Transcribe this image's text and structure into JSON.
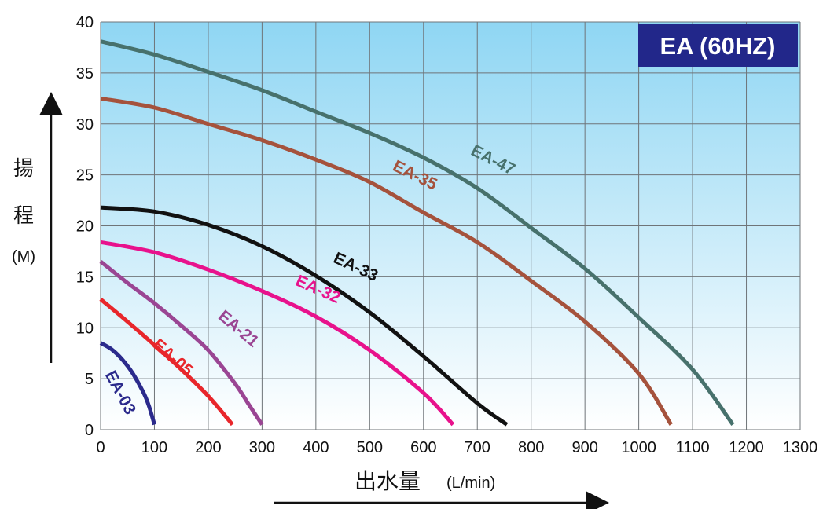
{
  "chart_data": {
    "type": "line",
    "title": "EA (60HZ)",
    "title_badge_color": "#22278a",
    "xlabel_main": "出水量",
    "xlabel_unit": "(L/min)",
    "ylabel_chars": [
      "揚",
      "程"
    ],
    "ylabel_unit": "(M)",
    "xlim": [
      0,
      1300
    ],
    "ylim": [
      0,
      40
    ],
    "x_ticks": [
      "0",
      "100",
      "200",
      "300",
      "400",
      "500",
      "600",
      "700",
      "800",
      "900",
      "1000",
      "1100",
      "1200",
      "1300"
    ],
    "y_ticks": [
      "0",
      "5",
      "10",
      "15",
      "20",
      "25",
      "30",
      "35",
      "40"
    ],
    "grid": true,
    "background": "gradient light-blue (top) to white (bottom)",
    "series": [
      {
        "name": "EA-03",
        "color": "#2b2a8c",
        "points": [
          [
            0,
            8.5
          ],
          [
            20,
            7.9
          ],
          [
            40,
            6.9
          ],
          [
            60,
            5.5
          ],
          [
            80,
            3.6
          ],
          [
            90,
            2.3
          ],
          [
            100,
            0.5
          ]
        ]
      },
      {
        "name": "EA-05",
        "color": "#e8262b",
        "points": [
          [
            0,
            12.8
          ],
          [
            50,
            10.6
          ],
          [
            100,
            8.3
          ],
          [
            150,
            5.9
          ],
          [
            200,
            3.3
          ],
          [
            245,
            0.5
          ]
        ]
      },
      {
        "name": "EA-21",
        "color": "#9a4593",
        "points": [
          [
            0,
            16.5
          ],
          [
            50,
            14.4
          ],
          [
            100,
            12.4
          ],
          [
            150,
            10.2
          ],
          [
            200,
            7.8
          ],
          [
            250,
            4.5
          ],
          [
            275,
            2.5
          ],
          [
            300,
            0.5
          ]
        ]
      },
      {
        "name": "EA-32",
        "color": "#e8128c",
        "points": [
          [
            0,
            18.4
          ],
          [
            100,
            17.4
          ],
          [
            200,
            15.7
          ],
          [
            300,
            13.6
          ],
          [
            400,
            11.1
          ],
          [
            500,
            7.8
          ],
          [
            600,
            3.6
          ],
          [
            655,
            0.5
          ]
        ]
      },
      {
        "name": "EA-33",
        "color": "#111111",
        "points": [
          [
            0,
            21.8
          ],
          [
            100,
            21.4
          ],
          [
            200,
            20.1
          ],
          [
            300,
            18.0
          ],
          [
            400,
            15.1
          ],
          [
            500,
            11.5
          ],
          [
            600,
            7.2
          ],
          [
            700,
            2.6
          ],
          [
            755,
            0.5
          ]
        ]
      },
      {
        "name": "EA-35",
        "color": "#a5523c",
        "points": [
          [
            0,
            32.5
          ],
          [
            100,
            31.6
          ],
          [
            200,
            30.0
          ],
          [
            300,
            28.4
          ],
          [
            400,
            26.5
          ],
          [
            500,
            24.3
          ],
          [
            600,
            21.3
          ],
          [
            700,
            18.4
          ],
          [
            800,
            14.6
          ],
          [
            900,
            10.6
          ],
          [
            1000,
            5.5
          ],
          [
            1060,
            0.5
          ]
        ]
      },
      {
        "name": "EA-47",
        "color": "#47716c",
        "points": [
          [
            0,
            38.1
          ],
          [
            100,
            36.8
          ],
          [
            200,
            35.1
          ],
          [
            300,
            33.3
          ],
          [
            400,
            31.2
          ],
          [
            500,
            29.1
          ],
          [
            600,
            26.7
          ],
          [
            700,
            23.7
          ],
          [
            800,
            19.8
          ],
          [
            900,
            15.8
          ],
          [
            1000,
            11.0
          ],
          [
            1100,
            5.9
          ],
          [
            1175,
            0.5
          ]
        ]
      }
    ]
  },
  "curve_labels": [
    {
      "text": "EA-03",
      "color": "#2b2a8c",
      "x": 28,
      "y": 3.4,
      "rotate": 62
    },
    {
      "text": "EA-05",
      "color": "#e8262b",
      "x": 128,
      "y": 6.7,
      "rotate": 41
    },
    {
      "text": "EA-21",
      "color": "#9a4593",
      "x": 250,
      "y": 9.5,
      "rotate": 40
    },
    {
      "text": "EA-32",
      "color": "#e8128c",
      "x": 400,
      "y": 13.3,
      "rotate": 24
    },
    {
      "text": "EA-33",
      "color": "#111111",
      "x": 470,
      "y": 15.5,
      "rotate": 25
    },
    {
      "text": "EA-35",
      "color": "#a5523c",
      "x": 580,
      "y": 24.5,
      "rotate": 26
    },
    {
      "text": "EA-47",
      "color": "#47716c",
      "x": 725,
      "y": 26.0,
      "rotate": 27
    }
  ]
}
